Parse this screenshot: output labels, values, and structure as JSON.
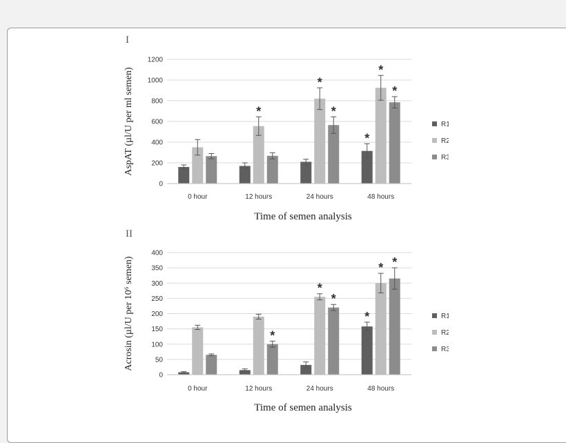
{
  "colors": {
    "R1": "#5f5f5f",
    "R2": "#bdbdbd",
    "R3": "#8c8c8c",
    "grid": "#d9d9d9",
    "error": "#555555"
  },
  "chart_data": [
    {
      "type": "bar",
      "panel_label": "I",
      "title": "",
      "xlabel": "Time of semen analysis",
      "ylabel": "AspAT (µl/U per ml semen)",
      "ylim": [
        0,
        1200
      ],
      "yticks": [
        0,
        200,
        400,
        600,
        800,
        1000,
        1200
      ],
      "grid": true,
      "legend_position": "right",
      "categories": [
        "0 hour",
        "12 hours",
        "24 hours",
        "48 hours"
      ],
      "series": [
        {
          "name": "R1",
          "values": [
            160,
            170,
            210,
            315
          ],
          "errors": [
            20,
            30,
            25,
            70
          ],
          "significant": [
            false,
            false,
            false,
            true
          ]
        },
        {
          "name": "R2",
          "values": [
            350,
            555,
            820,
            925
          ],
          "errors": [
            75,
            90,
            105,
            120
          ],
          "significant": [
            false,
            true,
            true,
            true
          ]
        },
        {
          "name": "R3",
          "values": [
            265,
            268,
            565,
            785
          ],
          "errors": [
            25,
            30,
            80,
            55
          ],
          "significant": [
            false,
            false,
            true,
            true
          ]
        }
      ]
    },
    {
      "type": "bar",
      "panel_label": "II",
      "title": "",
      "xlabel": "Time of semen analysis",
      "ylabel": "Acrosin (µl/U per 10⁶ semen)",
      "ylim": [
        0,
        400
      ],
      "yticks": [
        0,
        50,
        100,
        150,
        200,
        250,
        300,
        350,
        400
      ],
      "grid": true,
      "legend_position": "right",
      "categories": [
        "0 hour",
        "12 hours",
        "24 hours",
        "48 hours"
      ],
      "series": [
        {
          "name": "R1",
          "values": [
            8,
            15,
            32,
            158
          ],
          "errors": [
            2,
            4,
            10,
            14
          ],
          "significant": [
            false,
            false,
            false,
            true
          ]
        },
        {
          "name": "R2",
          "values": [
            155,
            190,
            255,
            300
          ],
          "errors": [
            7,
            8,
            10,
            32
          ],
          "significant": [
            false,
            false,
            true,
            true
          ]
        },
        {
          "name": "R3",
          "values": [
            65,
            100,
            220,
            315
          ],
          "errors": [
            3,
            10,
            10,
            35
          ],
          "significant": [
            false,
            true,
            true,
            true
          ]
        }
      ]
    }
  ],
  "significance_marker": "*"
}
